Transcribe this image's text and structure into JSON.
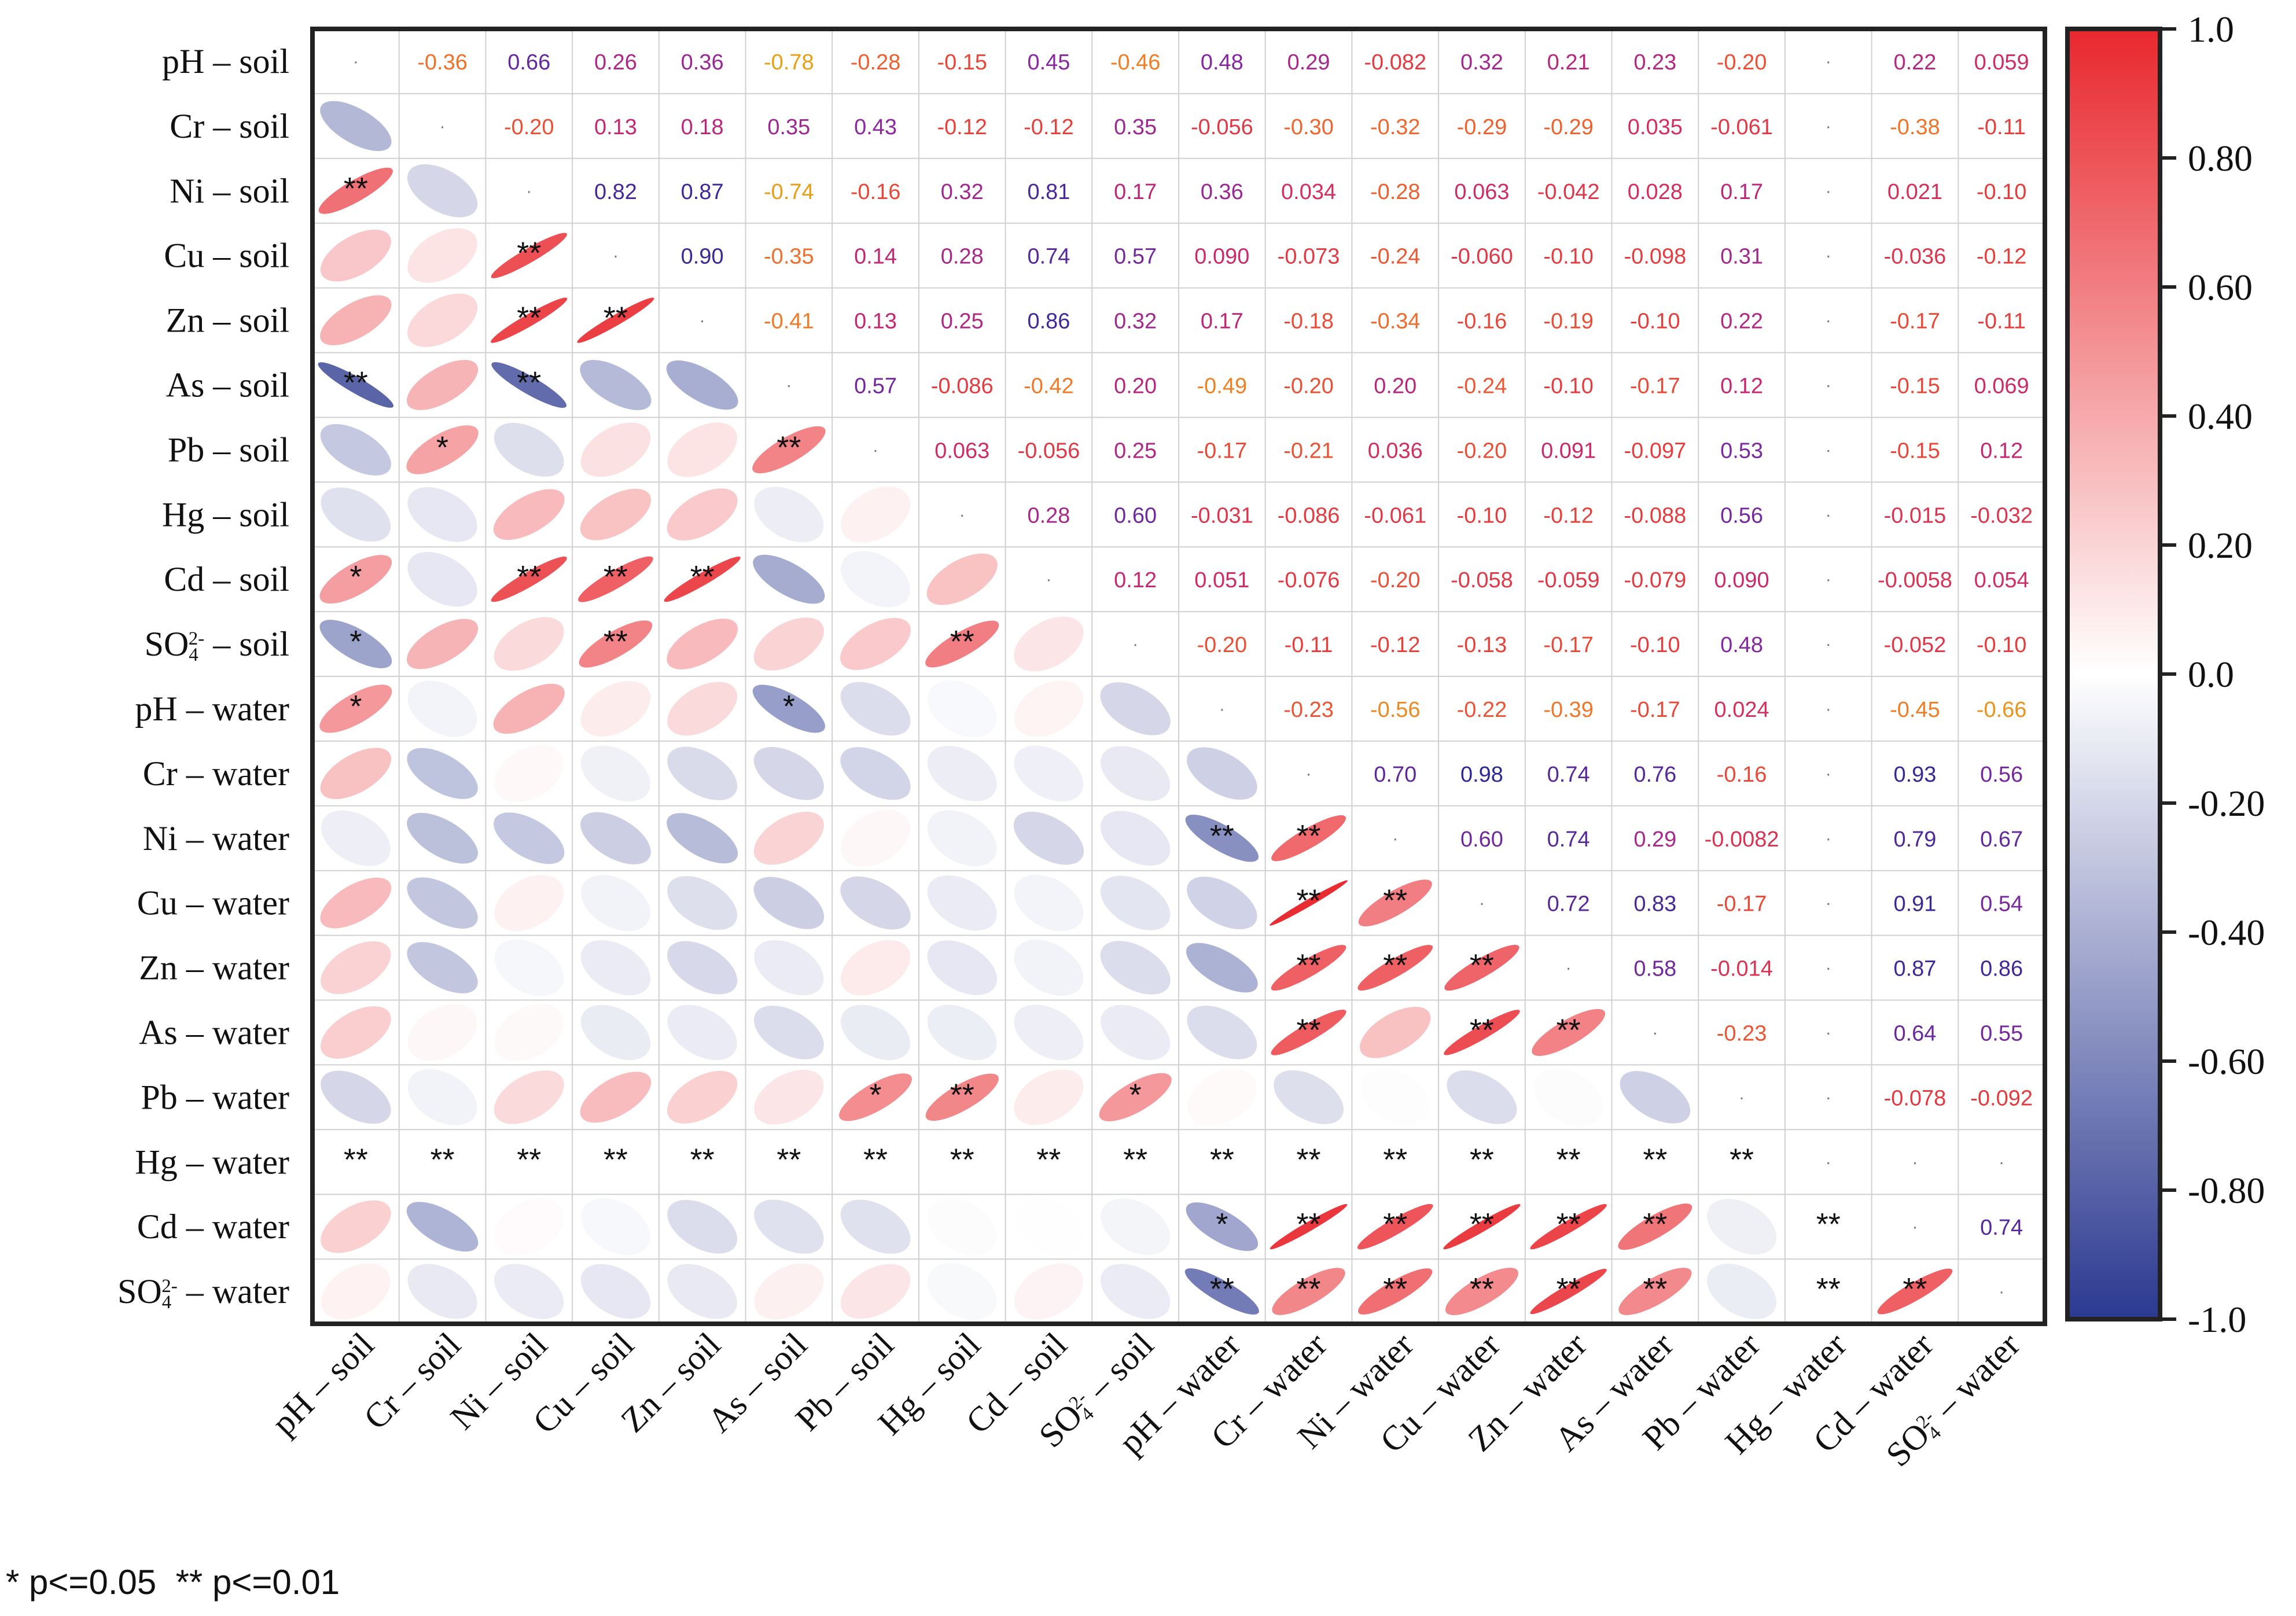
{
  "chart_data": {
    "type": "correlation-matrix",
    "labels": [
      {
        "base": "pH",
        "sub": "",
        "sup": "",
        "suffix": "soil"
      },
      {
        "base": "Cr",
        "sub": "",
        "sup": "",
        "suffix": "soil"
      },
      {
        "base": "Ni",
        "sub": "",
        "sup": "",
        "suffix": "soil"
      },
      {
        "base": "Cu",
        "sub": "",
        "sup": "",
        "suffix": "soil"
      },
      {
        "base": "Zn",
        "sub": "",
        "sup": "",
        "suffix": "soil"
      },
      {
        "base": "As",
        "sub": "",
        "sup": "",
        "suffix": "soil"
      },
      {
        "base": "Pb",
        "sub": "",
        "sup": "",
        "suffix": "soil"
      },
      {
        "base": "Hg",
        "sub": "",
        "sup": "",
        "suffix": "soil"
      },
      {
        "base": "Cd",
        "sub": "",
        "sup": "",
        "suffix": "soil"
      },
      {
        "base": "SO",
        "sub": "4",
        "sup": "2-",
        "suffix": "soil"
      },
      {
        "base": "pH",
        "sub": "",
        "sup": "",
        "suffix": "water"
      },
      {
        "base": "Cr",
        "sub": "",
        "sup": "",
        "suffix": "water"
      },
      {
        "base": "Ni",
        "sub": "",
        "sup": "",
        "suffix": "water"
      },
      {
        "base": "Cu",
        "sub": "",
        "sup": "",
        "suffix": "water"
      },
      {
        "base": "Zn",
        "sub": "",
        "sup": "",
        "suffix": "water"
      },
      {
        "base": "As",
        "sub": "",
        "sup": "",
        "suffix": "water"
      },
      {
        "base": "Pb",
        "sub": "",
        "sup": "",
        "suffix": "water"
      },
      {
        "base": "Hg",
        "sub": "",
        "sup": "",
        "suffix": "water"
      },
      {
        "base": "Cd",
        "sub": "",
        "sup": "",
        "suffix": "water"
      },
      {
        "base": "SO",
        "sub": "4",
        "sup": "2-",
        "suffix": "water"
      }
    ],
    "upper_values": [
      [
        "",
        "-0.36",
        "0.66",
        "0.26",
        "0.36",
        "-0.78",
        "-0.28",
        "-0.15",
        "0.45",
        "-0.46",
        "0.48",
        "0.29",
        "-0.082",
        "0.32",
        "0.21",
        "0.23",
        "-0.20",
        "",
        "0.22",
        "0.059"
      ],
      [
        "",
        "",
        "-0.20",
        "0.13",
        "0.18",
        "0.35",
        "0.43",
        "-0.12",
        "-0.12",
        "0.35",
        "-0.056",
        "-0.30",
        "-0.32",
        "-0.29",
        "-0.29",
        "0.035",
        "-0.061",
        "",
        "-0.38",
        "-0.11"
      ],
      [
        "",
        "",
        "",
        "0.82",
        "0.87",
        "-0.74",
        "-0.16",
        "0.32",
        "0.81",
        "0.17",
        "0.36",
        "0.034",
        "-0.28",
        "0.063",
        "-0.042",
        "0.028",
        "0.17",
        "",
        "0.021",
        "-0.10"
      ],
      [
        "",
        "",
        "",
        "",
        "0.90",
        "-0.35",
        "0.14",
        "0.28",
        "0.74",
        "0.57",
        "0.090",
        "-0.073",
        "-0.24",
        "-0.060",
        "-0.10",
        "-0.098",
        "0.31",
        "",
        "-0.036",
        "-0.12"
      ],
      [
        "",
        "",
        "",
        "",
        "",
        "-0.41",
        "0.13",
        "0.25",
        "0.86",
        "0.32",
        "0.17",
        "-0.18",
        "-0.34",
        "-0.16",
        "-0.19",
        "-0.10",
        "0.22",
        "",
        "-0.17",
        "-0.11"
      ],
      [
        "",
        "",
        "",
        "",
        "",
        "",
        "0.57",
        "-0.086",
        "-0.42",
        "0.20",
        "-0.49",
        "-0.20",
        "0.20",
        "-0.24",
        "-0.10",
        "-0.17",
        "0.12",
        "",
        "-0.15",
        "0.069"
      ],
      [
        "",
        "",
        "",
        "",
        "",
        "",
        "",
        "0.063",
        "-0.056",
        "0.25",
        "-0.17",
        "-0.21",
        "0.036",
        "-0.20",
        "0.091",
        "-0.097",
        "0.53",
        "",
        "-0.15",
        "0.12"
      ],
      [
        "",
        "",
        "",
        "",
        "",
        "",
        "",
        "",
        "0.28",
        "0.60",
        "-0.031",
        "-0.086",
        "-0.061",
        "-0.10",
        "-0.12",
        "-0.088",
        "0.56",
        "",
        "-0.015",
        "-0.032"
      ],
      [
        "",
        "",
        "",
        "",
        "",
        "",
        "",
        "",
        "",
        "0.12",
        "0.051",
        "-0.076",
        "-0.20",
        "-0.058",
        "-0.059",
        "-0.079",
        "0.090",
        "",
        "-0.0058",
        "0.054"
      ],
      [
        "",
        "",
        "",
        "",
        "",
        "",
        "",
        "",
        "",
        "",
        "-0.20",
        "-0.11",
        "-0.12",
        "-0.13",
        "-0.17",
        "-0.10",
        "0.48",
        "",
        "-0.052",
        "-0.10"
      ],
      [
        "",
        "",
        "",
        "",
        "",
        "",
        "",
        "",
        "",
        "",
        "",
        "-0.23",
        "-0.56",
        "-0.22",
        "-0.39",
        "-0.17",
        "0.024",
        "",
        "-0.45",
        "-0.66"
      ],
      [
        "",
        "",
        "",
        "",
        "",
        "",
        "",
        "",
        "",
        "",
        "",
        "",
        "0.70",
        "0.98",
        "0.74",
        "0.76",
        "-0.16",
        "",
        "0.93",
        "0.56"
      ],
      [
        "",
        "",
        "",
        "",
        "",
        "",
        "",
        "",
        "",
        "",
        "",
        "",
        "",
        "0.60",
        "0.74",
        "0.29",
        "-0.0082",
        "",
        "0.79",
        "0.67"
      ],
      [
        "",
        "",
        "",
        "",
        "",
        "",
        "",
        "",
        "",
        "",
        "",
        "",
        "",
        "",
        "0.72",
        "0.83",
        "-0.17",
        "",
        "0.91",
        "0.54"
      ],
      [
        "",
        "",
        "",
        "",
        "",
        "",
        "",
        "",
        "",
        "",
        "",
        "",
        "",
        "",
        "",
        "0.58",
        "-0.014",
        "",
        "0.87",
        "0.86"
      ],
      [
        "",
        "",
        "",
        "",
        "",
        "",
        "",
        "",
        "",
        "",
        "",
        "",
        "",
        "",
        "",
        "",
        "-0.23",
        "",
        "0.64",
        "0.55"
      ],
      [
        "",
        "",
        "",
        "",
        "",
        "",
        "",
        "",
        "",
        "",
        "",
        "",
        "",
        "",
        "",
        "",
        "",
        "",
        "-0.078",
        "-0.092"
      ],
      [
        "",
        "",
        "",
        "",
        "",
        "",
        "",
        "",
        "",
        "",
        "",
        "",
        "",
        "",
        "",
        "",
        "",
        "",
        "",
        ""
      ],
      [
        "",
        "",
        "",
        "",
        "",
        "",
        "",
        "",
        "",
        "",
        "",
        "",
        "",
        "",
        "",
        "",
        "",
        "",
        "",
        "0.74"
      ],
      [
        "",
        "",
        "",
        "",
        "",
        "",
        "",
        "",
        "",
        "",
        "",
        "",
        "",
        "",
        "",
        "",
        "",
        "",
        "",
        ""
      ]
    ],
    "significance": [
      [
        "",
        "",
        "",
        "",
        "",
        "",
        "",
        "",
        "",
        "",
        "",
        "",
        "",
        "",
        "",
        "",
        "",
        "",
        "",
        ""
      ],
      [
        "",
        "",
        "",
        "",
        "",
        "",
        "",
        "",
        "",
        "",
        "",
        "",
        "",
        "",
        "",
        "",
        "",
        "",
        "",
        ""
      ],
      [
        "**",
        "",
        "",
        "",
        "",
        "",
        "",
        "",
        "",
        "",
        "",
        "",
        "",
        "",
        "",
        "",
        "",
        "",
        "",
        ""
      ],
      [
        "",
        "",
        "**",
        "",
        "",
        "",
        "",
        "",
        "",
        "",
        "",
        "",
        "",
        "",
        "",
        "",
        "",
        "",
        "",
        ""
      ],
      [
        "",
        "",
        "**",
        "**",
        "",
        "",
        "",
        "",
        "",
        "",
        "",
        "",
        "",
        "",
        "",
        "",
        "",
        "",
        "",
        ""
      ],
      [
        "**",
        "",
        "**",
        "",
        "",
        "",
        "",
        "",
        "",
        "",
        "",
        "",
        "",
        "",
        "",
        "",
        "",
        "",
        "",
        ""
      ],
      [
        "",
        "*",
        "",
        "",
        "",
        "**",
        "",
        "",
        "",
        "",
        "",
        "",
        "",
        "",
        "",
        "",
        "",
        "",
        "",
        ""
      ],
      [
        "",
        "",
        "",
        "",
        "",
        "",
        "",
        "",
        "",
        "",
        "",
        "",
        "",
        "",
        "",
        "",
        "",
        "",
        "",
        ""
      ],
      [
        "*",
        "",
        "**",
        "**",
        "**",
        "",
        "",
        "",
        "",
        "",
        "",
        "",
        "",
        "",
        "",
        "",
        "",
        "",
        "",
        ""
      ],
      [
        "*",
        "",
        "",
        "**",
        "",
        "",
        "",
        "**",
        "",
        "",
        "",
        "",
        "",
        "",
        "",
        "",
        "",
        "",
        "",
        ""
      ],
      [
        "*",
        "",
        "",
        "",
        "",
        "*",
        "",
        "",
        "",
        "",
        "",
        "",
        "",
        "",
        "",
        "",
        "",
        "",
        "",
        ""
      ],
      [
        "",
        "",
        "",
        "",
        "",
        "",
        "",
        "",
        "",
        "",
        "",
        "",
        "",
        "",
        "",
        "",
        "",
        "",
        "",
        ""
      ],
      [
        "",
        "",
        "",
        "",
        "",
        "",
        "",
        "",
        "",
        "",
        "**",
        "**",
        "",
        "",
        "",
        "",
        "",
        "",
        "",
        ""
      ],
      [
        "",
        "",
        "",
        "",
        "",
        "",
        "",
        "",
        "",
        "",
        "",
        "**",
        "**",
        "",
        "",
        "",
        "",
        "",
        "",
        ""
      ],
      [
        "",
        "",
        "",
        "",
        "",
        "",
        "",
        "",
        "",
        "",
        "",
        "**",
        "**",
        "**",
        "",
        "",
        "",
        "",
        "",
        ""
      ],
      [
        "",
        "",
        "",
        "",
        "",
        "",
        "",
        "",
        "",
        "",
        "",
        "**",
        "",
        "**",
        "**",
        "",
        "",
        "",
        "",
        ""
      ],
      [
        "",
        "",
        "",
        "",
        "",
        "",
        "*",
        "**",
        "",
        "*",
        "",
        "",
        "",
        "",
        "",
        "",
        "",
        "",
        "",
        ""
      ],
      [
        "**",
        "**",
        "**",
        "**",
        "**",
        "**",
        "**",
        "**",
        "**",
        "**",
        "**",
        "**",
        "**",
        "**",
        "**",
        "**",
        "**",
        "",
        "",
        ""
      ],
      [
        "",
        "",
        "",
        "",
        "",
        "",
        "",
        "",
        "",
        "",
        "*",
        "**",
        "**",
        "**",
        "**",
        "**",
        "",
        "**",
        "",
        ""
      ],
      [
        "",
        "",
        "",
        "",
        "",
        "",
        "",
        "",
        "",
        "",
        "**",
        "**",
        "**",
        "**",
        "**",
        "**",
        "",
        "**",
        "**",
        ""
      ]
    ],
    "colorbar": {
      "min": -1.0,
      "max": 1.0,
      "ticks": [
        "1.0",
        "0.80",
        "0.60",
        "0.40",
        "0.20",
        "0.0",
        "-0.20",
        "-0.40",
        "-0.60",
        "-0.80",
        "-1.0"
      ],
      "colors": {
        "negative": "#2B3990",
        "zero": "#FFFFFF",
        "positive": "#E8282E"
      }
    },
    "label_separator": " – ",
    "diag_mark": "·",
    "legend_note": "* p<=0.05  ** p<=0.01"
  }
}
